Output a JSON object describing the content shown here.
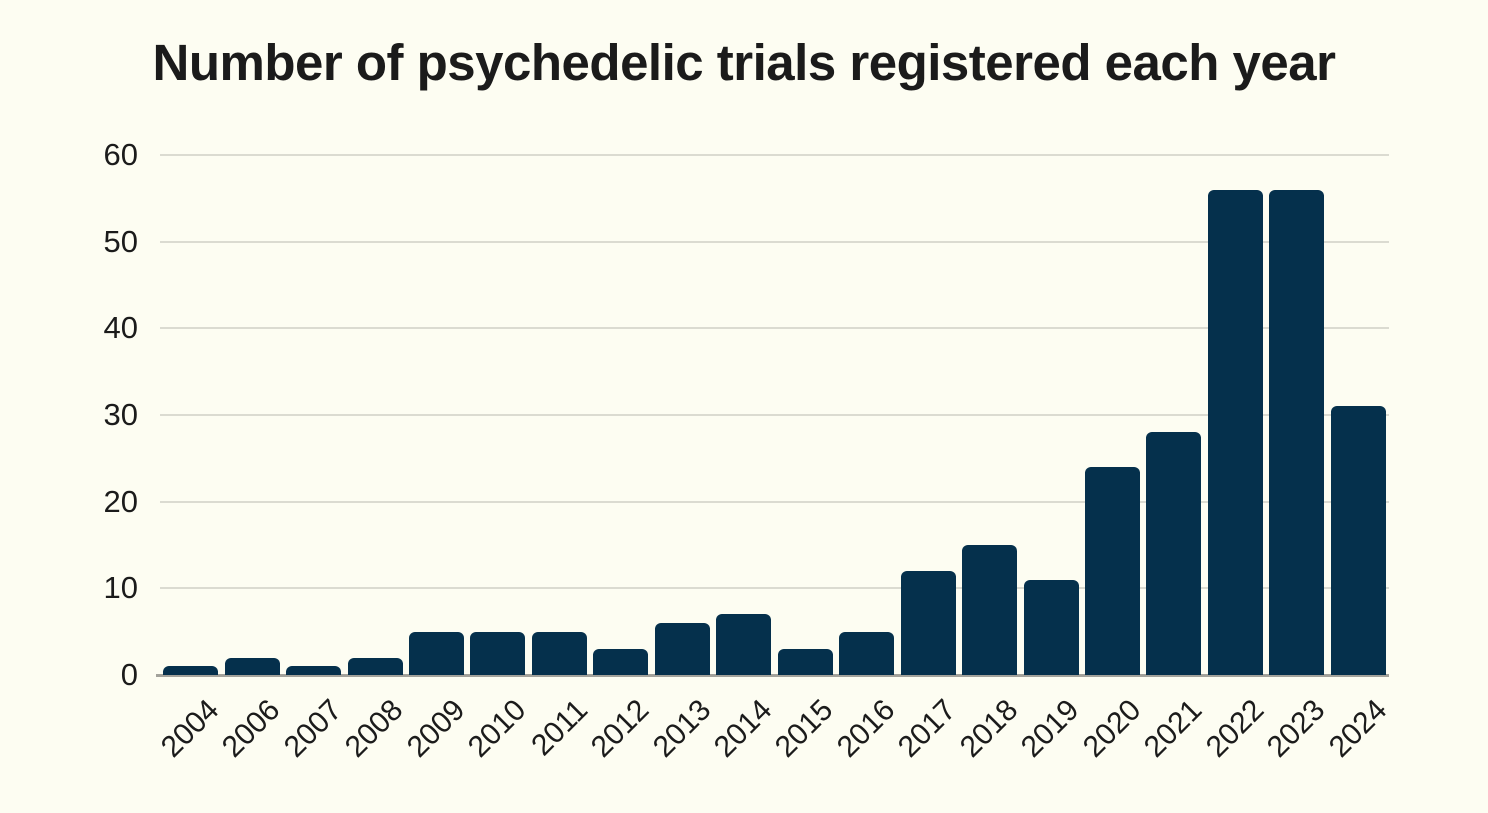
{
  "page": {
    "background": "#fdfdf2",
    "text_color": "#1b1b1b"
  },
  "chart_data": {
    "type": "bar",
    "title": "Number of psychedelic trials registered each year",
    "categories": [
      "2004",
      "2006",
      "2007",
      "2008",
      "2009",
      "2010",
      "2011",
      "2012",
      "2013",
      "2014",
      "2015",
      "2016",
      "2017",
      "2018",
      "2019",
      "2020",
      "2021",
      "2022",
      "2023",
      "2024"
    ],
    "values": [
      1,
      2,
      1,
      2,
      5,
      5,
      5,
      3,
      6,
      7,
      3,
      5,
      12,
      15,
      11,
      24,
      28,
      56,
      56,
      31
    ],
    "xlabel": "",
    "ylabel": "",
    "ylim": [
      0,
      60
    ],
    "yticks": [
      0,
      10,
      20,
      30,
      40,
      50,
      60
    ],
    "grid": true,
    "legend": false,
    "x_tick_rotation_deg": 45,
    "bar_color": "#05304c",
    "gridline_color": "#dbdbd1",
    "axis_line_color": "#a3a29b"
  }
}
